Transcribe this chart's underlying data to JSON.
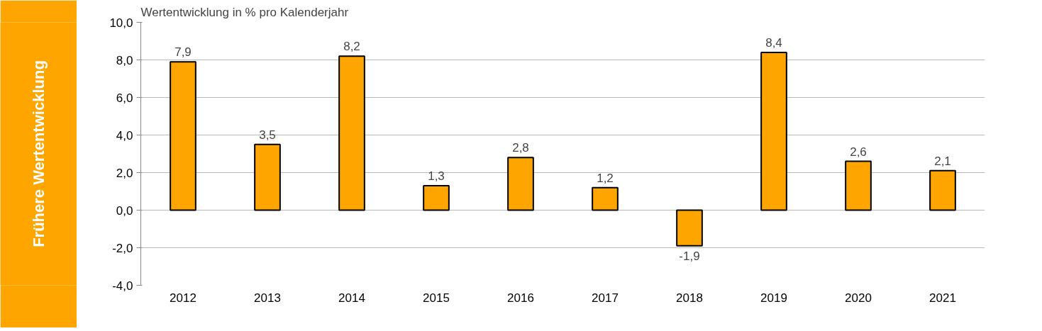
{
  "chart_data": {
    "type": "bar",
    "title": "Wertentwicklung in % pro Kalenderjahr",
    "annotations": [
      "Frühere Wertentwicklung"
    ],
    "categories": [
      "2012",
      "2013",
      "2014",
      "2015",
      "2016",
      "2017",
      "2018",
      "2019",
      "2020",
      "2021"
    ],
    "values": [
      7.9,
      3.5,
      8.2,
      1.3,
      2.8,
      1.2,
      -1.9,
      8.4,
      2.6,
      2.1
    ],
    "value_labels": [
      "7,9",
      "3,5",
      "8,2",
      "1,3",
      "2,8",
      "1,2",
      "-1,9",
      "8,4",
      "2,6",
      "2,1"
    ],
    "color": "#ffa500",
    "ylim": [
      -4,
      10
    ],
    "yticks": [
      {
        "value": -4,
        "label": "-4,0"
      },
      {
        "value": -2,
        "label": "-2,0"
      },
      {
        "value": 0,
        "label": "0,0"
      },
      {
        "value": 2,
        "label": "2,0"
      },
      {
        "value": 4,
        "label": "4,0"
      },
      {
        "value": 6,
        "label": "6,0"
      },
      {
        "value": 8,
        "label": "8,0"
      },
      {
        "value": 10,
        "label": "10,0"
      }
    ],
    "grid": "y"
  }
}
